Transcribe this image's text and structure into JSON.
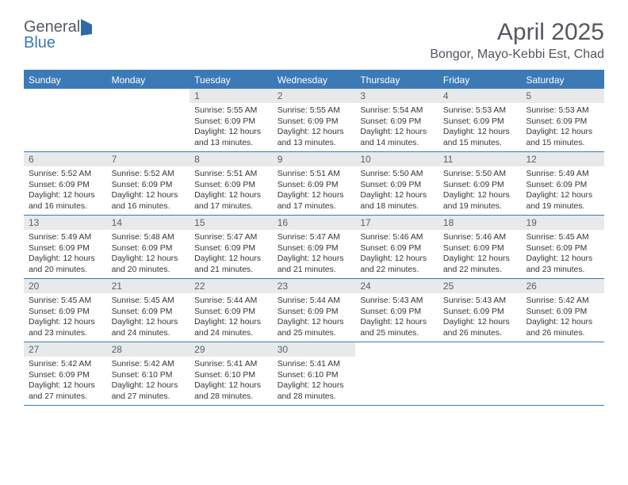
{
  "brand": {
    "part1": "General",
    "part2": "Blue"
  },
  "title": "April 2025",
  "location": "Bongor, Mayo-Kebbi Est, Chad",
  "colors": {
    "header_bg": "#3c7ab6",
    "header_text": "#ffffff",
    "daynum_bg": "#e8e9ea",
    "rule": "#3c7ab6",
    "title_text": "#54585f",
    "body_text": "#353535"
  },
  "typography": {
    "title_fontsize": 30,
    "location_fontsize": 16,
    "dow_fontsize": 12,
    "cell_fontsize": 10.4
  },
  "dow": [
    "Sunday",
    "Monday",
    "Tuesday",
    "Wednesday",
    "Thursday",
    "Friday",
    "Saturday"
  ],
  "weeks": [
    [
      {
        "n": "",
        "sr": "",
        "ss": "",
        "dl": ""
      },
      {
        "n": "",
        "sr": "",
        "ss": "",
        "dl": ""
      },
      {
        "n": "1",
        "sr": "Sunrise: 5:55 AM",
        "ss": "Sunset: 6:09 PM",
        "dl": "Daylight: 12 hours and 13 minutes."
      },
      {
        "n": "2",
        "sr": "Sunrise: 5:55 AM",
        "ss": "Sunset: 6:09 PM",
        "dl": "Daylight: 12 hours and 13 minutes."
      },
      {
        "n": "3",
        "sr": "Sunrise: 5:54 AM",
        "ss": "Sunset: 6:09 PM",
        "dl": "Daylight: 12 hours and 14 minutes."
      },
      {
        "n": "4",
        "sr": "Sunrise: 5:53 AM",
        "ss": "Sunset: 6:09 PM",
        "dl": "Daylight: 12 hours and 15 minutes."
      },
      {
        "n": "5",
        "sr": "Sunrise: 5:53 AM",
        "ss": "Sunset: 6:09 PM",
        "dl": "Daylight: 12 hours and 15 minutes."
      }
    ],
    [
      {
        "n": "6",
        "sr": "Sunrise: 5:52 AM",
        "ss": "Sunset: 6:09 PM",
        "dl": "Daylight: 12 hours and 16 minutes."
      },
      {
        "n": "7",
        "sr": "Sunrise: 5:52 AM",
        "ss": "Sunset: 6:09 PM",
        "dl": "Daylight: 12 hours and 16 minutes."
      },
      {
        "n": "8",
        "sr": "Sunrise: 5:51 AM",
        "ss": "Sunset: 6:09 PM",
        "dl": "Daylight: 12 hours and 17 minutes."
      },
      {
        "n": "9",
        "sr": "Sunrise: 5:51 AM",
        "ss": "Sunset: 6:09 PM",
        "dl": "Daylight: 12 hours and 17 minutes."
      },
      {
        "n": "10",
        "sr": "Sunrise: 5:50 AM",
        "ss": "Sunset: 6:09 PM",
        "dl": "Daylight: 12 hours and 18 minutes."
      },
      {
        "n": "11",
        "sr": "Sunrise: 5:50 AM",
        "ss": "Sunset: 6:09 PM",
        "dl": "Daylight: 12 hours and 19 minutes."
      },
      {
        "n": "12",
        "sr": "Sunrise: 5:49 AM",
        "ss": "Sunset: 6:09 PM",
        "dl": "Daylight: 12 hours and 19 minutes."
      }
    ],
    [
      {
        "n": "13",
        "sr": "Sunrise: 5:49 AM",
        "ss": "Sunset: 6:09 PM",
        "dl": "Daylight: 12 hours and 20 minutes."
      },
      {
        "n": "14",
        "sr": "Sunrise: 5:48 AM",
        "ss": "Sunset: 6:09 PM",
        "dl": "Daylight: 12 hours and 20 minutes."
      },
      {
        "n": "15",
        "sr": "Sunrise: 5:47 AM",
        "ss": "Sunset: 6:09 PM",
        "dl": "Daylight: 12 hours and 21 minutes."
      },
      {
        "n": "16",
        "sr": "Sunrise: 5:47 AM",
        "ss": "Sunset: 6:09 PM",
        "dl": "Daylight: 12 hours and 21 minutes."
      },
      {
        "n": "17",
        "sr": "Sunrise: 5:46 AM",
        "ss": "Sunset: 6:09 PM",
        "dl": "Daylight: 12 hours and 22 minutes."
      },
      {
        "n": "18",
        "sr": "Sunrise: 5:46 AM",
        "ss": "Sunset: 6:09 PM",
        "dl": "Daylight: 12 hours and 22 minutes."
      },
      {
        "n": "19",
        "sr": "Sunrise: 5:45 AM",
        "ss": "Sunset: 6:09 PM",
        "dl": "Daylight: 12 hours and 23 minutes."
      }
    ],
    [
      {
        "n": "20",
        "sr": "Sunrise: 5:45 AM",
        "ss": "Sunset: 6:09 PM",
        "dl": "Daylight: 12 hours and 23 minutes."
      },
      {
        "n": "21",
        "sr": "Sunrise: 5:45 AM",
        "ss": "Sunset: 6:09 PM",
        "dl": "Daylight: 12 hours and 24 minutes."
      },
      {
        "n": "22",
        "sr": "Sunrise: 5:44 AM",
        "ss": "Sunset: 6:09 PM",
        "dl": "Daylight: 12 hours and 24 minutes."
      },
      {
        "n": "23",
        "sr": "Sunrise: 5:44 AM",
        "ss": "Sunset: 6:09 PM",
        "dl": "Daylight: 12 hours and 25 minutes."
      },
      {
        "n": "24",
        "sr": "Sunrise: 5:43 AM",
        "ss": "Sunset: 6:09 PM",
        "dl": "Daylight: 12 hours and 25 minutes."
      },
      {
        "n": "25",
        "sr": "Sunrise: 5:43 AM",
        "ss": "Sunset: 6:09 PM",
        "dl": "Daylight: 12 hours and 26 minutes."
      },
      {
        "n": "26",
        "sr": "Sunrise: 5:42 AM",
        "ss": "Sunset: 6:09 PM",
        "dl": "Daylight: 12 hours and 26 minutes."
      }
    ],
    [
      {
        "n": "27",
        "sr": "Sunrise: 5:42 AM",
        "ss": "Sunset: 6:09 PM",
        "dl": "Daylight: 12 hours and 27 minutes."
      },
      {
        "n": "28",
        "sr": "Sunrise: 5:42 AM",
        "ss": "Sunset: 6:10 PM",
        "dl": "Daylight: 12 hours and 27 minutes."
      },
      {
        "n": "29",
        "sr": "Sunrise: 5:41 AM",
        "ss": "Sunset: 6:10 PM",
        "dl": "Daylight: 12 hours and 28 minutes."
      },
      {
        "n": "30",
        "sr": "Sunrise: 5:41 AM",
        "ss": "Sunset: 6:10 PM",
        "dl": "Daylight: 12 hours and 28 minutes."
      },
      {
        "n": "",
        "sr": "",
        "ss": "",
        "dl": ""
      },
      {
        "n": "",
        "sr": "",
        "ss": "",
        "dl": ""
      },
      {
        "n": "",
        "sr": "",
        "ss": "",
        "dl": ""
      }
    ]
  ]
}
